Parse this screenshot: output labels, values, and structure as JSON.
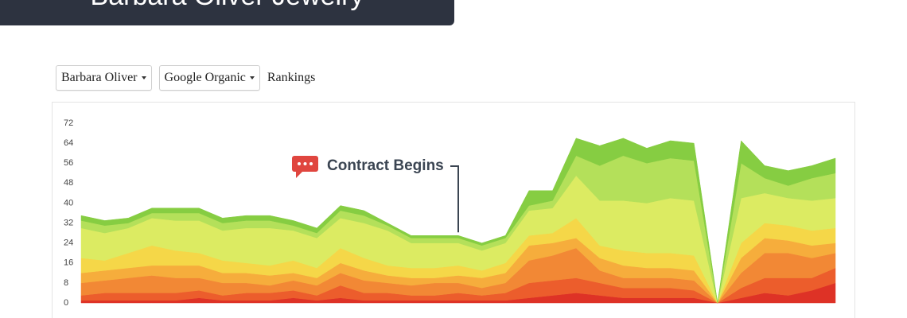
{
  "header": {
    "title": "Barbara Oliver Jewelry"
  },
  "controls": {
    "client": "Barbara Oliver",
    "source": "Google Organic",
    "metric": "Rankings"
  },
  "chart_data": {
    "type": "stacked_area",
    "categories": [
      null,
      null,
      null,
      null,
      null,
      null,
      null,
      null,
      null,
      null,
      null,
      null,
      null,
      null,
      null,
      null,
      null,
      null,
      null,
      null,
      null,
      null,
      null,
      null,
      null,
      null,
      null,
      null,
      null,
      null,
      null,
      null,
      null
    ],
    "ylim": [
      0,
      72
    ],
    "yticks": [
      0,
      8,
      16,
      24,
      32,
      40,
      48,
      56,
      64,
      72
    ],
    "annotation": {
      "text": "Contract Begins",
      "index": 16
    },
    "series": [
      {
        "color": "#de3226",
        "values": [
          1,
          1,
          1,
          1,
          1,
          2,
          1,
          1,
          1,
          2,
          1,
          2,
          1,
          1,
          1,
          1,
          1,
          1,
          1,
          2,
          3,
          4,
          3,
          2,
          2,
          2,
          2,
          0,
          2,
          4,
          3,
          5,
          8
        ]
      },
      {
        "color": "#ec5d2c",
        "values": [
          2,
          3,
          3,
          3,
          3,
          3,
          2,
          3,
          3,
          3,
          2,
          5,
          3,
          3,
          2,
          2,
          3,
          2,
          3,
          6,
          6,
          6,
          5,
          4,
          4,
          4,
          3,
          0,
          4,
          6,
          7,
          5,
          6
        ]
      },
      {
        "color": "#f28835",
        "values": [
          5,
          5,
          6,
          7,
          6,
          5,
          5,
          4,
          3,
          4,
          4,
          5,
          5,
          4,
          4,
          5,
          4,
          3,
          4,
          9,
          10,
          12,
          5,
          4,
          4,
          4,
          4,
          0,
          6,
          10,
          10,
          8,
          6
        ]
      },
      {
        "color": "#f6ad3c",
        "values": [
          4,
          4,
          4,
          4,
          5,
          5,
          4,
          4,
          4,
          3,
          3,
          4,
          4,
          3,
          3,
          2,
          3,
          4,
          4,
          6,
          5,
          4,
          5,
          5,
          4,
          4,
          4,
          0,
          6,
          6,
          5,
          5,
          4
        ]
      },
      {
        "color": "#f5d748",
        "values": [
          6,
          4,
          6,
          8,
          6,
          5,
          5,
          4,
          4,
          5,
          4,
          6,
          5,
          4,
          4,
          4,
          4,
          3,
          4,
          4,
          4,
          8,
          5,
          6,
          6,
          6,
          6,
          0,
          6,
          6,
          6,
          6,
          6
        ]
      },
      {
        "color": "#dceb62",
        "values": [
          12,
          11,
          10,
          11,
          12,
          13,
          12,
          14,
          15,
          12,
          12,
          12,
          14,
          14,
          10,
          10,
          9,
          8,
          8,
          10,
          10,
          17,
          18,
          20,
          20,
          22,
          22,
          0,
          18,
          12,
          11,
          12,
          12
        ]
      },
      {
        "color": "#b4e05a",
        "values": [
          3,
          3,
          2,
          2,
          3,
          3,
          3,
          3,
          3,
          2,
          2,
          3,
          3,
          2,
          2,
          2,
          2,
          2,
          2,
          2,
          3,
          8,
          14,
          18,
          16,
          16,
          16,
          0,
          14,
          6,
          5,
          9,
          10
        ]
      },
      {
        "color": "#86cd42",
        "values": [
          2,
          2,
          2,
          2,
          2,
          2,
          2,
          2,
          2,
          2,
          2,
          2,
          2,
          1,
          1,
          1,
          1,
          1,
          1,
          6,
          4,
          7,
          8,
          7,
          6,
          7,
          7,
          0,
          9,
          5,
          6,
          5,
          6
        ]
      }
    ]
  }
}
